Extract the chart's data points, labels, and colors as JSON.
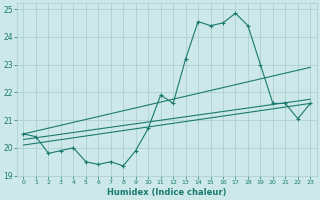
{
  "xlabel": "Humidex (Indice chaleur)",
  "bg_color": "#cce8e8",
  "grid_color": "#aacccc",
  "line_color": "#1a7a6e",
  "xlim": [
    -0.5,
    23.5
  ],
  "ylim": [
    19,
    25.2
  ],
  "yticks": [
    19,
    20,
    21,
    22,
    23,
    24,
    25
  ],
  "xticks": [
    0,
    1,
    2,
    3,
    4,
    5,
    6,
    7,
    8,
    9,
    10,
    11,
    12,
    13,
    14,
    15,
    16,
    17,
    18,
    19,
    20,
    21,
    22,
    23
  ],
  "line1_x": [
    0,
    1,
    2,
    3,
    4,
    5,
    6,
    7,
    8,
    9,
    10,
    11,
    12,
    13,
    14,
    15,
    16,
    17,
    18,
    19,
    20,
    21,
    22,
    23
  ],
  "line1_y": [
    20.5,
    20.4,
    19.8,
    19.9,
    20.0,
    19.5,
    19.4,
    19.5,
    19.35,
    19.9,
    20.7,
    21.9,
    21.6,
    23.2,
    24.55,
    24.4,
    24.5,
    24.85,
    24.4,
    23.0,
    21.6,
    21.6,
    21.05,
    21.6
  ],
  "line2_x": [
    0,
    23
  ],
  "line2_y": [
    20.5,
    22.9
  ],
  "line3_x": [
    0,
    23
  ],
  "line3_y": [
    20.3,
    21.75
  ],
  "line4_x": [
    0,
    23
  ],
  "line4_y": [
    20.1,
    21.6
  ]
}
